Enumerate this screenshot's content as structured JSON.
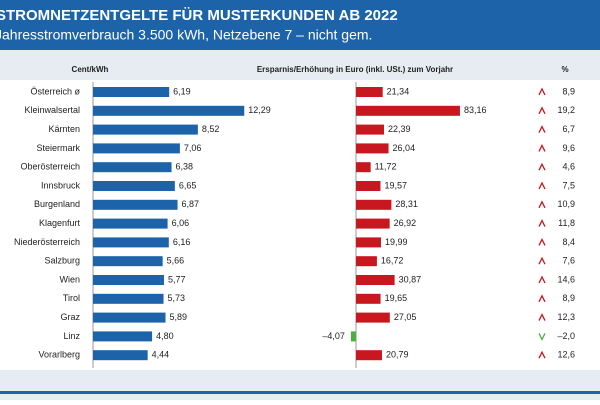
{
  "header": {
    "title": "STROMNETZENTGELTE FÜR MUSTERKUNDEN AB 2022",
    "subtitle": "Jahresstromverbrauch 3.500 kWh, Netzebene 7 – nicht gem."
  },
  "chart_data": [
    {
      "type": "hbar",
      "title": "Cent/kWh",
      "categories": [
        "Österreich ø",
        "Kleinwalsertal",
        "Kärnten",
        "Steiermark",
        "Oberösterreich",
        "Innsbruck",
        "Burgenland",
        "Klagenfurt",
        "Niederösterreich",
        "Salzburg",
        "Wien",
        "Tirol",
        "Graz",
        "Linz",
        "Vorarlberg"
      ],
      "values": [
        6.19,
        12.29,
        8.52,
        7.06,
        6.38,
        6.65,
        6.87,
        6.06,
        6.16,
        5.66,
        5.77,
        5.73,
        5.89,
        4.8,
        4.44
      ],
      "value_labels": [
        "6,19",
        "12,29",
        "8,52",
        "7,06",
        "6,38",
        "6,65",
        "6,87",
        "6,06",
        "6,16",
        "5,66",
        "5,77",
        "5,73",
        "5,89",
        "4,80",
        "4,44"
      ],
      "color": "#1c63a9",
      "xlim": [
        0,
        13
      ]
    },
    {
      "type": "hbar",
      "title": "Ersparnis/Erhöhung in Euro (inkl. USt.) zum Vorjahr",
      "values": [
        21.34,
        83.16,
        22.39,
        26.04,
        11.72,
        19.57,
        28.31,
        26.92,
        19.99,
        16.72,
        30.87,
        19.65,
        27.05,
        -4.07,
        20.79
      ],
      "value_labels": [
        "21,34",
        "83,16",
        "22,39",
        "26,04",
        "11,72",
        "19,57",
        "28,31",
        "26,92",
        "19,99",
        "16,72",
        "30,87",
        "19,65",
        "27,05",
        "–4,07",
        "20,79"
      ],
      "colors": [
        "#c8171e",
        "#c8171e",
        "#c8171e",
        "#c8171e",
        "#c8171e",
        "#c8171e",
        "#c8171e",
        "#c8171e",
        "#c8171e",
        "#c8171e",
        "#c8171e",
        "#c8171e",
        "#c8171e",
        "#4caf3f",
        "#c8171e"
      ],
      "xlim": [
        -10,
        90
      ]
    }
  ],
  "percent": {
    "header": "%",
    "values": [
      8.9,
      19.2,
      6.7,
      9.6,
      4.6,
      7.5,
      10.9,
      11.8,
      8.4,
      7.6,
      14.6,
      8.9,
      12.3,
      -2.0,
      12.6
    ],
    "value_labels": [
      "8,9",
      "19,2",
      "6,7",
      "9,6",
      "4,6",
      "7,5",
      "10,9",
      "11,8",
      "8,4",
      "7,6",
      "14,6",
      "8,9",
      "12,3",
      "–2,0",
      "12,6"
    ]
  }
}
